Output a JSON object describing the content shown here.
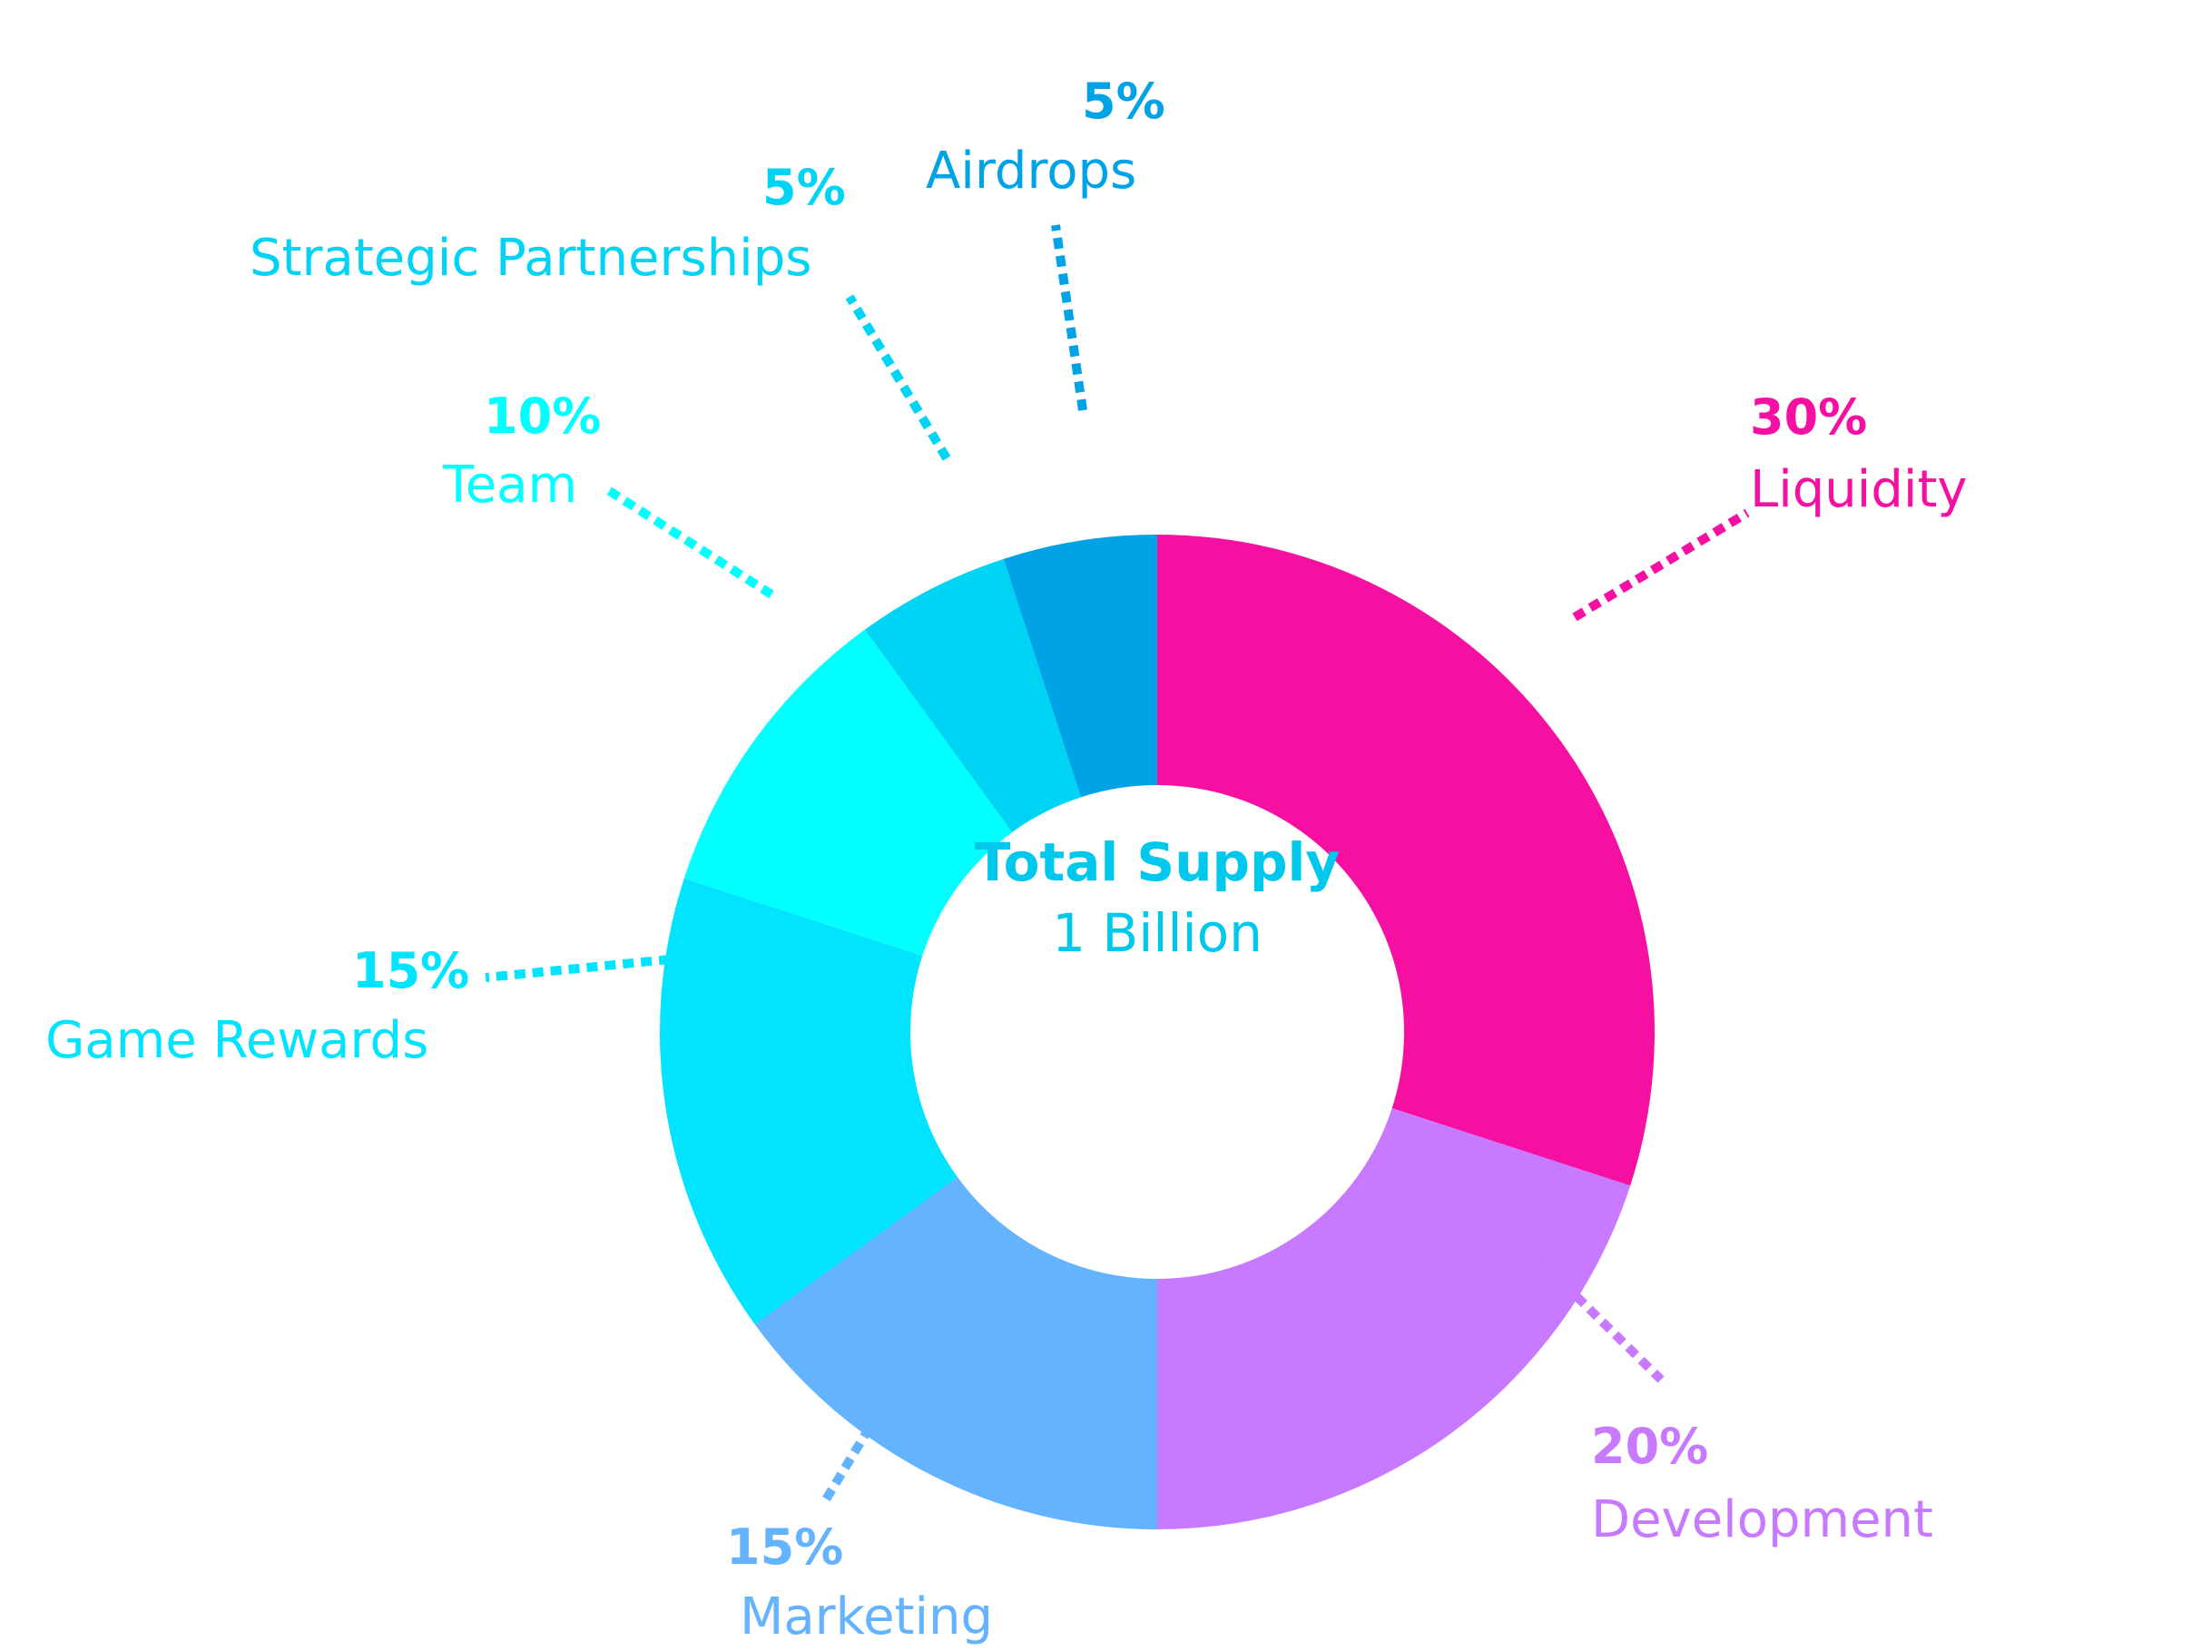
{
  "chart_data": {
    "type": "pie",
    "variant": "donut",
    "center": {
      "title": "Total Supply",
      "value": "1 Billion",
      "color": "#00c8ec"
    },
    "slices": [
      {
        "name": "Liquidity",
        "value": 30,
        "label": "30%",
        "color": "#f510a2"
      },
      {
        "name": "Development",
        "value": 20,
        "label": "20%",
        "color": "#c77aff"
      },
      {
        "name": "Marketing",
        "value": 15,
        "label": "15%",
        "color": "#63b3ff"
      },
      {
        "name": "Game Rewards",
        "value": 15,
        "label": "15%",
        "color": "#00e4ff"
      },
      {
        "name": "Team",
        "value": 10,
        "label": "10%",
        "color": "#00ffff"
      },
      {
        "name": "Strategic Partnerships",
        "value": 5,
        "label": "5%",
        "color": "#00d4f5"
      },
      {
        "name": "Airdrops",
        "value": 5,
        "label": "5%",
        "color": "#00a3e5"
      }
    ],
    "legend": "none",
    "labels": "outside-with-dotted-leaders"
  }
}
